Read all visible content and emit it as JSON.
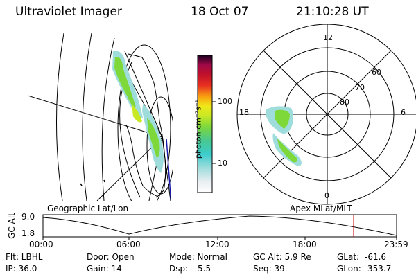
{
  "header": {
    "instrument": "Ultraviolet Imager",
    "date": "18 Oct 07",
    "time": "21:10:28 UT"
  },
  "colorbar": {
    "unit_label": "photon cm⁻²s⁻¹",
    "ticks": [
      "100",
      "10"
    ]
  },
  "polar_plot": {
    "mlt_labels": [
      "12",
      "18",
      "6",
      "0"
    ],
    "lat_labels": [
      "60",
      "70",
      "80"
    ]
  },
  "panels": {
    "geo_label": "Geographic Lat/Lon",
    "apex_label": "Apex MLat/MLT"
  },
  "orbit_plot": {
    "ylabel": "GC Alt",
    "y_ticks": [
      "9.0",
      "1.8"
    ],
    "x_ticks": [
      "00:00",
      "06:00",
      "12:00",
      "18:00",
      "23:59"
    ],
    "current_time_marker": "21:10:28",
    "marker_color": "#cc0000"
  },
  "status": {
    "flt": "Flt: LBHL",
    "ip": "IP: 36.0",
    "door": "Door: Open",
    "gain": "Gain: 14",
    "mode": "Mode: Normal",
    "dsp_label": "Dsp:",
    "dsp_value": "5.5",
    "gcalt": "GC Alt: 5.9 Re",
    "seq": "Seq: 39",
    "glat_label": "GLat:",
    "glat_value": "-61.6",
    "glon_label": "GLon:",
    "glon_value": "353.7"
  }
}
